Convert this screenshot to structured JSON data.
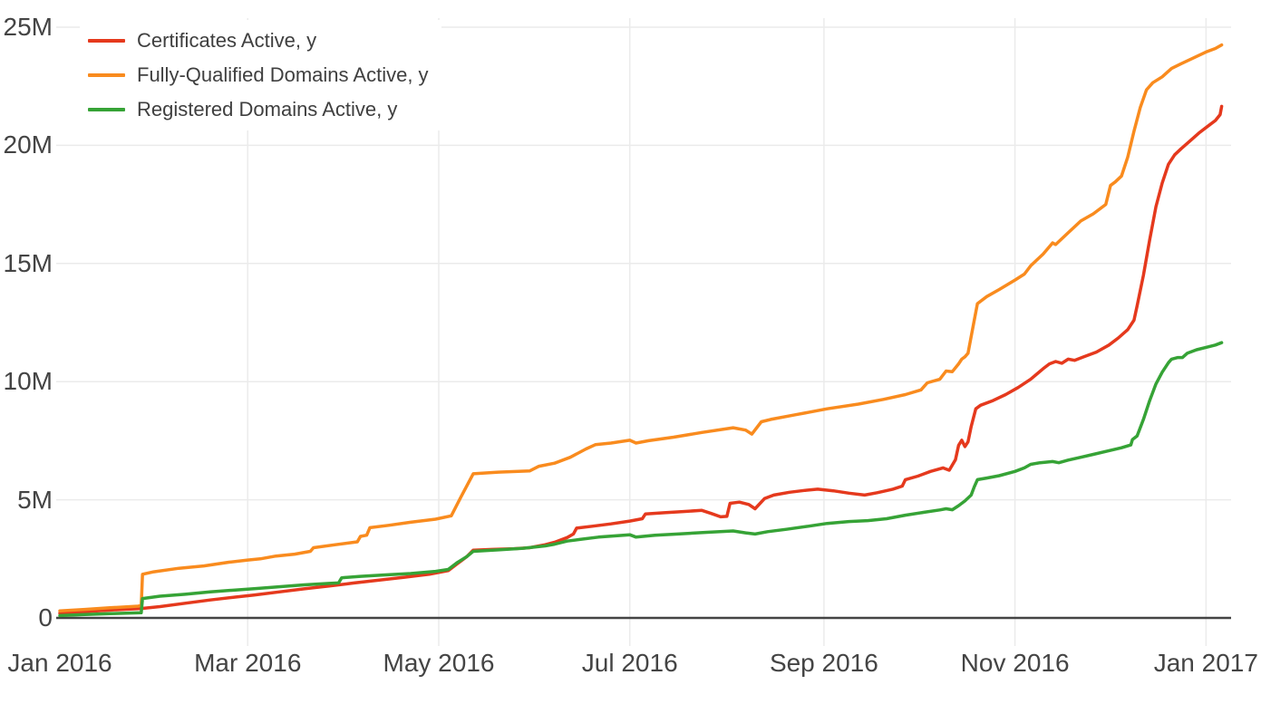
{
  "chart_data": {
    "type": "line",
    "title": "",
    "grid": true,
    "legend_position": "top-left",
    "x_unit": "days since 2016-01-01",
    "xlim_days": [
      -1.2,
      374
    ],
    "y_unit": "millions",
    "ylim": [
      -1.19,
      25.38
    ],
    "x_ticks": [
      {
        "day": 0,
        "label": "Jan 2016"
      },
      {
        "day": 60,
        "label": "Mar 2016"
      },
      {
        "day": 121,
        "label": "May 2016"
      },
      {
        "day": 182,
        "label": "Jul 2016"
      },
      {
        "day": 244,
        "label": "Sep 2016"
      },
      {
        "day": 305,
        "label": "Nov 2016"
      },
      {
        "day": 366,
        "label": "Jan 2017"
      }
    ],
    "y_ticks": [
      {
        "value": 0,
        "label": "0"
      },
      {
        "value": 5,
        "label": "5M"
      },
      {
        "value": 10,
        "label": "10M"
      },
      {
        "value": 15,
        "label": "15M"
      },
      {
        "value": 20,
        "label": "20M"
      },
      {
        "value": 25,
        "label": "25M"
      }
    ],
    "colors": {
      "grid": "#ebebeb",
      "zeroline": "#444444",
      "tick_text": "#444444",
      "legend_text": "#3f3f3f"
    },
    "series": [
      {
        "name": "Certificates Active, y",
        "color": "#e5391d",
        "points": [
          [
            0,
            0.2
          ],
          [
            8,
            0.27
          ],
          [
            16,
            0.33
          ],
          [
            26,
            0.4
          ],
          [
            32,
            0.48
          ],
          [
            40,
            0.62
          ],
          [
            48,
            0.76
          ],
          [
            56,
            0.88
          ],
          [
            62,
            0.97
          ],
          [
            70,
            1.1
          ],
          [
            78,
            1.23
          ],
          [
            86,
            1.35
          ],
          [
            94,
            1.48
          ],
          [
            102,
            1.6
          ],
          [
            110,
            1.72
          ],
          [
            118,
            1.85
          ],
          [
            124,
            2.0
          ],
          [
            127,
            2.3
          ],
          [
            130,
            2.6
          ],
          [
            132,
            2.87
          ],
          [
            138,
            2.9
          ],
          [
            145,
            2.93
          ],
          [
            150,
            2.97
          ],
          [
            155,
            3.1
          ],
          [
            158,
            3.2
          ],
          [
            162,
            3.4
          ],
          [
            164,
            3.55
          ],
          [
            165,
            3.8
          ],
          [
            170,
            3.88
          ],
          [
            176,
            3.98
          ],
          [
            182,
            4.1
          ],
          [
            186,
            4.2
          ],
          [
            187,
            4.4
          ],
          [
            193,
            4.45
          ],
          [
            199,
            4.5
          ],
          [
            205,
            4.55
          ],
          [
            208,
            4.42
          ],
          [
            211,
            4.28
          ],
          [
            213,
            4.3
          ],
          [
            214,
            4.85
          ],
          [
            217,
            4.9
          ],
          [
            220,
            4.8
          ],
          [
            222,
            4.62
          ],
          [
            225,
            5.05
          ],
          [
            228,
            5.2
          ],
          [
            233,
            5.32
          ],
          [
            238,
            5.4
          ],
          [
            242,
            5.45
          ],
          [
            247,
            5.38
          ],
          [
            252,
            5.28
          ],
          [
            257,
            5.2
          ],
          [
            261,
            5.3
          ],
          [
            266,
            5.45
          ],
          [
            269,
            5.58
          ],
          [
            270,
            5.85
          ],
          [
            274,
            6.0
          ],
          [
            278,
            6.2
          ],
          [
            282,
            6.35
          ],
          [
            284,
            6.25
          ],
          [
            286,
            6.7
          ],
          [
            287,
            7.3
          ],
          [
            288,
            7.52
          ],
          [
            289,
            7.25
          ],
          [
            290,
            7.45
          ],
          [
            291,
            8.1
          ],
          [
            292.5,
            8.85
          ],
          [
            294,
            9.0
          ],
          [
            298,
            9.2
          ],
          [
            302,
            9.45
          ],
          [
            306,
            9.75
          ],
          [
            310,
            10.1
          ],
          [
            314,
            10.55
          ],
          [
            316,
            10.75
          ],
          [
            318,
            10.85
          ],
          [
            320,
            10.78
          ],
          [
            322,
            10.95
          ],
          [
            324,
            10.9
          ],
          [
            327,
            11.05
          ],
          [
            331,
            11.25
          ],
          [
            335,
            11.55
          ],
          [
            338,
            11.85
          ],
          [
            341,
            12.2
          ],
          [
            343,
            12.6
          ],
          [
            344,
            13.2
          ],
          [
            346,
            14.5
          ],
          [
            348,
            16.0
          ],
          [
            350,
            17.4
          ],
          [
            352,
            18.4
          ],
          [
            354,
            19.2
          ],
          [
            356,
            19.6
          ],
          [
            358,
            19.85
          ],
          [
            361,
            20.2
          ],
          [
            364,
            20.55
          ],
          [
            367,
            20.85
          ],
          [
            369,
            21.05
          ],
          [
            370.5,
            21.3
          ],
          [
            371,
            21.65
          ]
        ]
      },
      {
        "name": "Fully-Qualified Domains Active, y",
        "color": "#f98b1e",
        "points": [
          [
            0,
            0.3
          ],
          [
            8,
            0.36
          ],
          [
            16,
            0.43
          ],
          [
            25,
            0.5
          ],
          [
            26,
            0.52
          ],
          [
            26.4,
            1.85
          ],
          [
            30,
            1.95
          ],
          [
            38,
            2.1
          ],
          [
            46,
            2.2
          ],
          [
            54,
            2.36
          ],
          [
            60,
            2.45
          ],
          [
            64,
            2.5
          ],
          [
            69,
            2.62
          ],
          [
            75,
            2.7
          ],
          [
            80,
            2.82
          ],
          [
            81,
            2.97
          ],
          [
            88,
            3.1
          ],
          [
            95,
            3.22
          ],
          [
            96,
            3.45
          ],
          [
            98,
            3.5
          ],
          [
            99,
            3.82
          ],
          [
            105,
            3.92
          ],
          [
            112,
            4.05
          ],
          [
            120,
            4.18
          ],
          [
            125,
            4.32
          ],
          [
            128,
            5.1
          ],
          [
            132,
            6.1
          ],
          [
            140,
            6.17
          ],
          [
            150,
            6.22
          ],
          [
            153,
            6.42
          ],
          [
            158,
            6.55
          ],
          [
            163,
            6.8
          ],
          [
            168,
            7.15
          ],
          [
            171,
            7.33
          ],
          [
            176,
            7.4
          ],
          [
            182,
            7.52
          ],
          [
            184,
            7.4
          ],
          [
            188,
            7.5
          ],
          [
            196,
            7.65
          ],
          [
            205,
            7.85
          ],
          [
            215,
            8.05
          ],
          [
            219,
            7.95
          ],
          [
            221,
            7.78
          ],
          [
            224,
            8.3
          ],
          [
            227,
            8.4
          ],
          [
            235,
            8.6
          ],
          [
            245,
            8.85
          ],
          [
            255,
            9.05
          ],
          [
            263,
            9.25
          ],
          [
            270,
            9.45
          ],
          [
            275,
            9.65
          ],
          [
            277,
            9.95
          ],
          [
            281,
            10.1
          ],
          [
            283,
            10.45
          ],
          [
            285,
            10.42
          ],
          [
            287,
            10.75
          ],
          [
            288,
            10.95
          ],
          [
            289,
            11.05
          ],
          [
            290,
            11.2
          ],
          [
            292,
            12.6
          ],
          [
            293,
            13.3
          ],
          [
            296,
            13.6
          ],
          [
            300,
            13.9
          ],
          [
            305,
            14.3
          ],
          [
            308,
            14.55
          ],
          [
            310,
            14.9
          ],
          [
            314,
            15.4
          ],
          [
            317,
            15.87
          ],
          [
            318,
            15.8
          ],
          [
            322,
            16.3
          ],
          [
            326,
            16.8
          ],
          [
            330,
            17.1
          ],
          [
            334,
            17.5
          ],
          [
            335.5,
            18.3
          ],
          [
            337,
            18.45
          ],
          [
            339,
            18.7
          ],
          [
            341,
            19.5
          ],
          [
            343,
            20.6
          ],
          [
            345,
            21.6
          ],
          [
            347,
            22.35
          ],
          [
            349,
            22.65
          ],
          [
            352,
            22.9
          ],
          [
            355,
            23.25
          ],
          [
            358,
            23.45
          ],
          [
            362,
            23.7
          ],
          [
            366,
            23.95
          ],
          [
            369,
            24.1
          ],
          [
            371,
            24.25
          ]
        ]
      },
      {
        "name": "Registered Domains Active, y",
        "color": "#36a336",
        "points": [
          [
            0,
            0.1
          ],
          [
            8,
            0.14
          ],
          [
            16,
            0.18
          ],
          [
            26,
            0.22
          ],
          [
            26.4,
            0.82
          ],
          [
            32,
            0.92
          ],
          [
            40,
            1.0
          ],
          [
            48,
            1.1
          ],
          [
            56,
            1.18
          ],
          [
            62,
            1.24
          ],
          [
            70,
            1.32
          ],
          [
            78,
            1.4
          ],
          [
            86,
            1.46
          ],
          [
            89,
            1.48
          ],
          [
            90,
            1.7
          ],
          [
            96,
            1.76
          ],
          [
            104,
            1.82
          ],
          [
            112,
            1.88
          ],
          [
            120,
            1.97
          ],
          [
            124,
            2.05
          ],
          [
            127,
            2.35
          ],
          [
            130,
            2.6
          ],
          [
            132,
            2.82
          ],
          [
            140,
            2.88
          ],
          [
            148,
            2.95
          ],
          [
            155,
            3.05
          ],
          [
            158,
            3.12
          ],
          [
            162,
            3.25
          ],
          [
            166,
            3.32
          ],
          [
            172,
            3.42
          ],
          [
            178,
            3.48
          ],
          [
            182,
            3.52
          ],
          [
            184,
            3.42
          ],
          [
            190,
            3.5
          ],
          [
            198,
            3.56
          ],
          [
            206,
            3.62
          ],
          [
            215,
            3.68
          ],
          [
            219,
            3.6
          ],
          [
            222,
            3.55
          ],
          [
            226,
            3.65
          ],
          [
            232,
            3.75
          ],
          [
            239,
            3.88
          ],
          [
            245,
            4.0
          ],
          [
            252,
            4.08
          ],
          [
            258,
            4.12
          ],
          [
            264,
            4.2
          ],
          [
            270,
            4.35
          ],
          [
            276,
            4.47
          ],
          [
            281,
            4.57
          ],
          [
            283,
            4.62
          ],
          [
            285,
            4.58
          ],
          [
            287,
            4.75
          ],
          [
            289,
            4.95
          ],
          [
            291,
            5.2
          ],
          [
            292,
            5.55
          ],
          [
            293,
            5.85
          ],
          [
            296,
            5.92
          ],
          [
            300,
            6.02
          ],
          [
            305,
            6.2
          ],
          [
            308,
            6.35
          ],
          [
            310,
            6.5
          ],
          [
            313,
            6.57
          ],
          [
            317,
            6.62
          ],
          [
            319,
            6.57
          ],
          [
            322,
            6.68
          ],
          [
            326,
            6.8
          ],
          [
            330,
            6.92
          ],
          [
            335,
            7.08
          ],
          [
            339,
            7.2
          ],
          [
            342,
            7.32
          ],
          [
            342.5,
            7.55
          ],
          [
            344,
            7.7
          ],
          [
            346,
            8.4
          ],
          [
            348,
            9.2
          ],
          [
            350,
            9.9
          ],
          [
            352,
            10.4
          ],
          [
            354,
            10.8
          ],
          [
            355,
            10.95
          ],
          [
            357,
            11.02
          ],
          [
            358.5,
            11.02
          ],
          [
            360,
            11.2
          ],
          [
            363,
            11.35
          ],
          [
            366,
            11.45
          ],
          [
            369,
            11.55
          ],
          [
            371,
            11.65
          ]
        ]
      }
    ]
  }
}
